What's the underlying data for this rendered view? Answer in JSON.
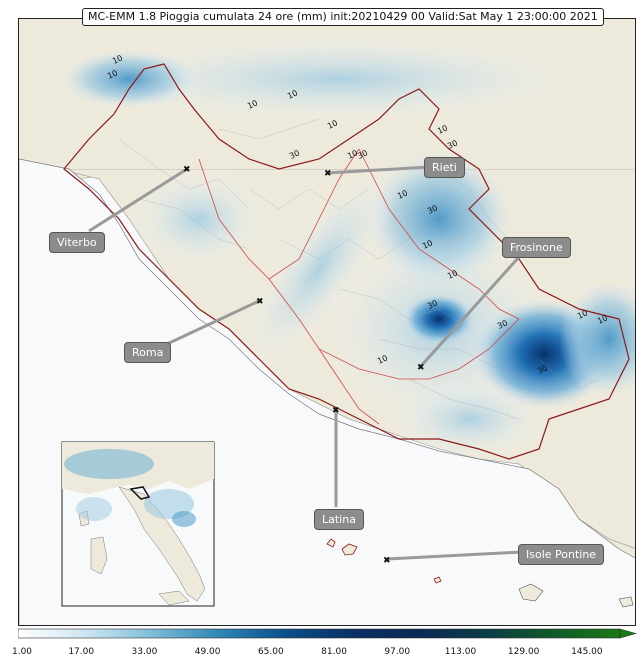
{
  "title": "MC-EMM 1.8 Pioggia cumulata 24 ore (mm) init:20210429 00  Valid:Sat May  1 23:00:00 2021",
  "colors": {
    "land": "#eeeadb",
    "sea": "#f7f9fb",
    "region_border": "#8b1a1a",
    "province_border": "#d04848",
    "label_bg": "#8c8c8c"
  },
  "cities": [
    {
      "name": "Viterbo"
    },
    {
      "name": "Rieti"
    },
    {
      "name": "Frosinone"
    },
    {
      "name": "Roma"
    },
    {
      "name": "Latina"
    },
    {
      "name": "Isole Pontine"
    }
  ],
  "contour_labels": [
    "10",
    "10",
    "10",
    "10",
    "10",
    "10",
    "30",
    "30",
    "10",
    "30",
    "30",
    "10",
    "10",
    "10",
    "30",
    "10",
    "30",
    "10",
    "10",
    "30"
  ],
  "colorbar": {
    "ticks": [
      "1.00",
      "17.00",
      "33.00",
      "49.00",
      "65.00",
      "81.00",
      "97.00",
      "113.00",
      "129.00",
      "145.00"
    ],
    "stops": [
      "#ffffff",
      "#cfe6f2",
      "#7fbdd9",
      "#2f86b5",
      "#0b4f8a",
      "#0a2f66",
      "#0a2a55",
      "#0b3d46",
      "#0f5a2a",
      "#1a7a14"
    ]
  },
  "inset": {
    "description_icon": "italy-overview-inset"
  }
}
